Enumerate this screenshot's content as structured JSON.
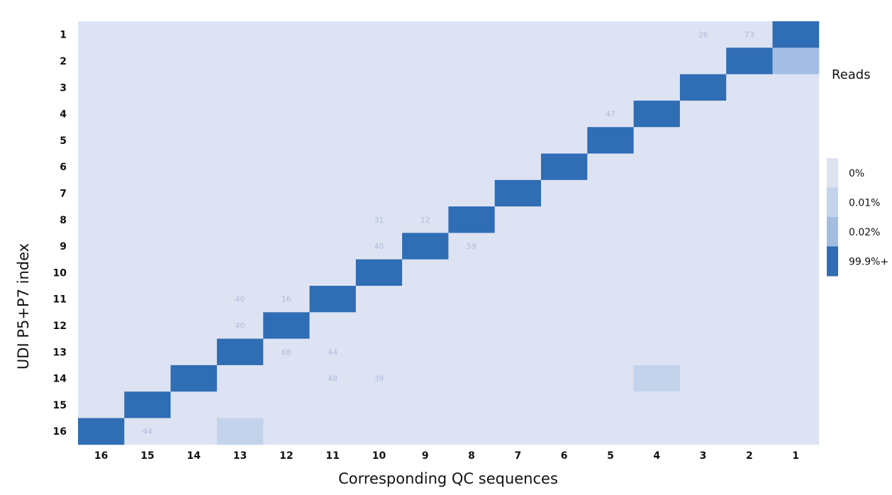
{
  "chart_data": {
    "type": "heatmap",
    "title": "",
    "xlabel": "Corresponding QC sequences",
    "ylabel": "UDI P5+P7 index",
    "x_categories": [
      "16",
      "15",
      "14",
      "13",
      "12",
      "11",
      "10",
      "9",
      "8",
      "7",
      "6",
      "5",
      "4",
      "3",
      "2",
      "1"
    ],
    "y_categories": [
      "1",
      "2",
      "3",
      "4",
      "5",
      "6",
      "7",
      "8",
      "9",
      "10",
      "11",
      "12",
      "13",
      "14",
      "15",
      "16"
    ],
    "level_index_matrix": [
      [
        0,
        0,
        0,
        0,
        0,
        0,
        0,
        0,
        0,
        0,
        0,
        0,
        0,
        0,
        0,
        3
      ],
      [
        0,
        0,
        0,
        0,
        0,
        0,
        0,
        0,
        0,
        0,
        0,
        0,
        0,
        0,
        3,
        2
      ],
      [
        0,
        0,
        0,
        0,
        0,
        0,
        0,
        0,
        0,
        0,
        0,
        0,
        0,
        3,
        0,
        0
      ],
      [
        0,
        0,
        0,
        0,
        0,
        0,
        0,
        0,
        0,
        0,
        0,
        0,
        3,
        0,
        0,
        0
      ],
      [
        0,
        0,
        0,
        0,
        0,
        0,
        0,
        0,
        0,
        0,
        0,
        3,
        0,
        0,
        0,
        0
      ],
      [
        0,
        0,
        0,
        0,
        0,
        0,
        0,
        0,
        0,
        0,
        3,
        0,
        0,
        0,
        0,
        0
      ],
      [
        0,
        0,
        0,
        0,
        0,
        0,
        0,
        0,
        0,
        3,
        0,
        0,
        0,
        0,
        0,
        0
      ],
      [
        0,
        0,
        0,
        0,
        0,
        0,
        0,
        0,
        3,
        0,
        0,
        0,
        0,
        0,
        0,
        0
      ],
      [
        0,
        0,
        0,
        0,
        0,
        0,
        0,
        3,
        0,
        0,
        0,
        0,
        0,
        0,
        0,
        0
      ],
      [
        0,
        0,
        0,
        0,
        0,
        0,
        3,
        0,
        0,
        0,
        0,
        0,
        0,
        0,
        0,
        0
      ],
      [
        0,
        0,
        0,
        0,
        0,
        3,
        0,
        0,
        0,
        0,
        0,
        0,
        0,
        0,
        0,
        0
      ],
      [
        0,
        0,
        0,
        0,
        3,
        0,
        0,
        0,
        0,
        0,
        0,
        0,
        0,
        0,
        0,
        0
      ],
      [
        0,
        0,
        0,
        3,
        0,
        0,
        0,
        0,
        0,
        0,
        0,
        0,
        0,
        0,
        0,
        0
      ],
      [
        0,
        0,
        3,
        0,
        0,
        0,
        0,
        0,
        0,
        0,
        0,
        0,
        1,
        0,
        0,
        0
      ],
      [
        0,
        3,
        0,
        0,
        0,
        0,
        0,
        0,
        0,
        0,
        0,
        0,
        0,
        0,
        0,
        0
      ],
      [
        3,
        0,
        0,
        1,
        0,
        0,
        0,
        0,
        0,
        0,
        0,
        0,
        0,
        0,
        0,
        0
      ]
    ],
    "cell_labels": [
      {
        "row": "1",
        "col": "3",
        "text": "26"
      },
      {
        "row": "1",
        "col": "2",
        "text": "73"
      },
      {
        "row": "4",
        "col": "5",
        "text": "47"
      },
      {
        "row": "8",
        "col": "10",
        "text": "31"
      },
      {
        "row": "8",
        "col": "9",
        "text": "12"
      },
      {
        "row": "9",
        "col": "10",
        "text": "40"
      },
      {
        "row": "9",
        "col": "8",
        "text": "59"
      },
      {
        "row": "11",
        "col": "13",
        "text": "40"
      },
      {
        "row": "11",
        "col": "12",
        "text": "16"
      },
      {
        "row": "12",
        "col": "13",
        "text": "40"
      },
      {
        "row": "13",
        "col": "12",
        "text": "68"
      },
      {
        "row": "13",
        "col": "11",
        "text": "44"
      },
      {
        "row": "14",
        "col": "11",
        "text": "48"
      },
      {
        "row": "14",
        "col": "10",
        "text": "39"
      },
      {
        "row": "16",
        "col": "15",
        "text": "44"
      }
    ],
    "legend": {
      "title": "Reads",
      "position": "right",
      "levels": [
        {
          "label": "0%",
          "color": "#dde3f3"
        },
        {
          "label": "0.01%",
          "color": "#c2d3eb"
        },
        {
          "label": "0.02%",
          "color": "#a3bde3"
        },
        {
          "label": "99.9%+",
          "color": "#2f6db4"
        }
      ]
    }
  }
}
